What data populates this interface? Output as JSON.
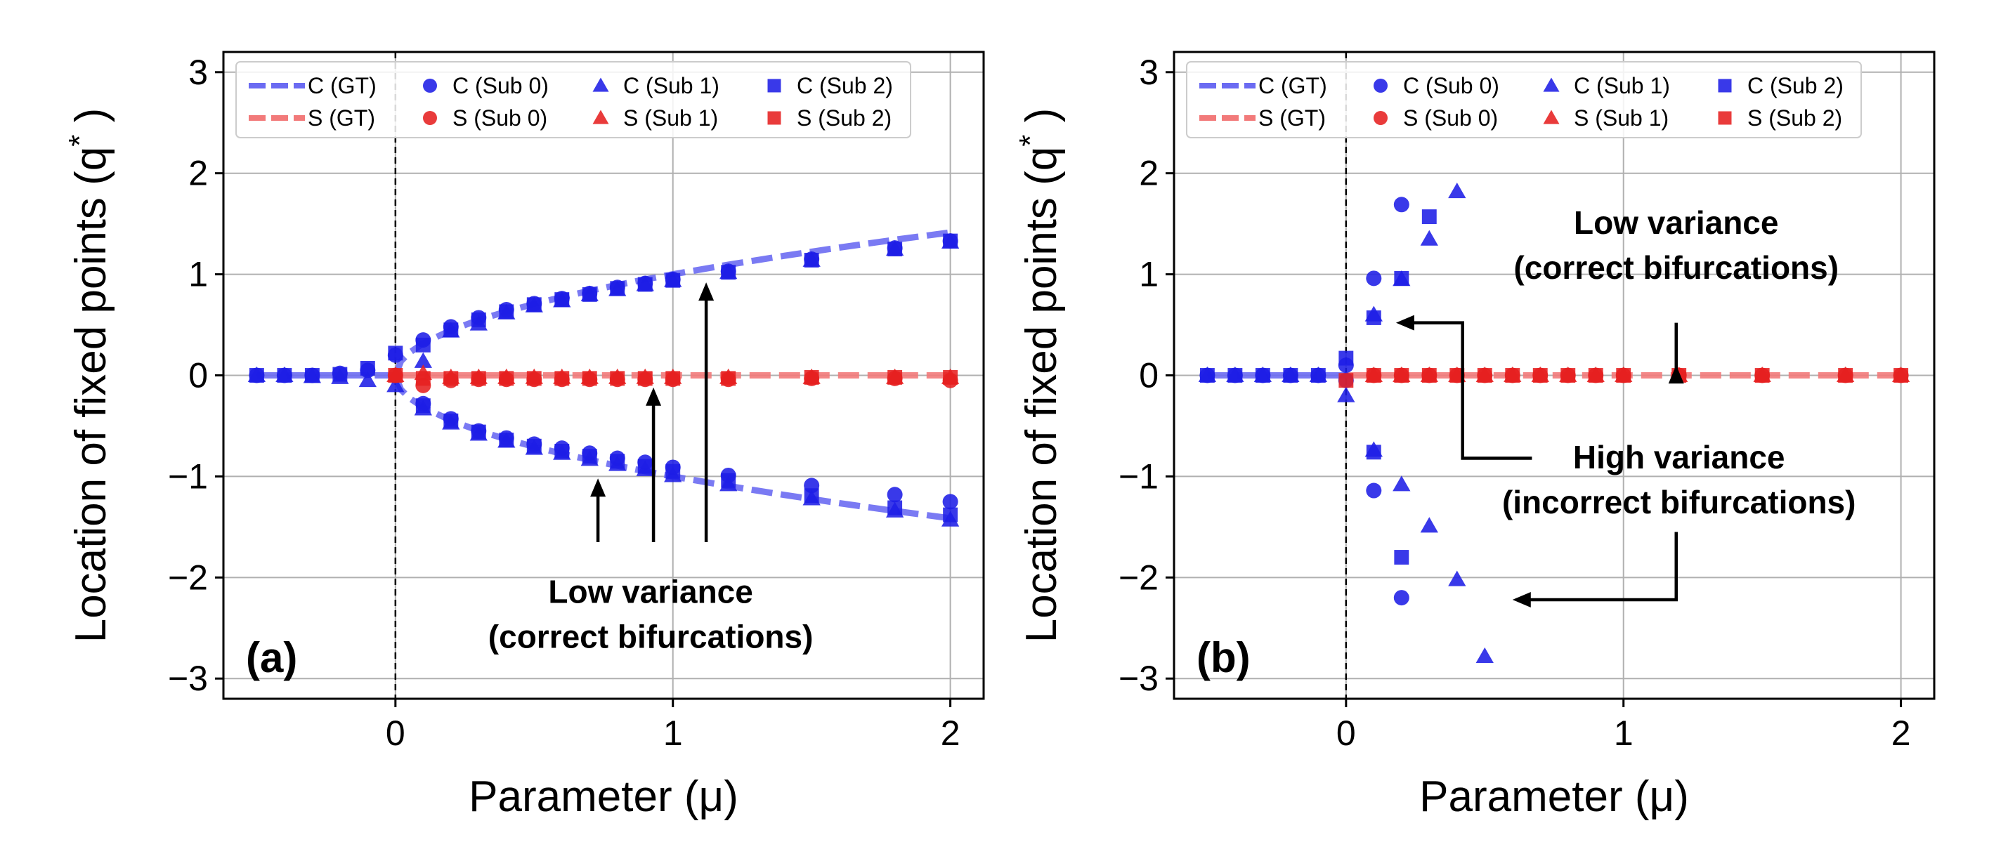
{
  "chart_data": [
    {
      "type": "scatter",
      "panel_label": "(a)",
      "xlabel": "Parameter (μ)",
      "ylabel": "Location of fixed points (q*)",
      "xlim": [
        -0.62,
        2.12
      ],
      "ylim": [
        -3.2,
        3.2
      ],
      "xticks": [
        0,
        1,
        2
      ],
      "yticks": [
        -3,
        -2,
        -1,
        0,
        1,
        2,
        3
      ],
      "xtick_labels": [
        "0",
        "1",
        "2"
      ],
      "ytick_labels": [
        "−3",
        "−2",
        "−1",
        "0",
        "1",
        "2",
        "3"
      ],
      "grid": true,
      "legend_position": "top",
      "vline_x": 0,
      "legend": [
        {
          "label": "C (GT)",
          "kind": "line",
          "color": "#6b6bf2"
        },
        {
          "label": "C (Sub 0)",
          "kind": "circle",
          "color": "#1e1ee6"
        },
        {
          "label": "C (Sub 1)",
          "kind": "triangle",
          "color": "#1e1ee6"
        },
        {
          "label": "C (Sub 2)",
          "kind": "square",
          "color": "#1e1ee6"
        },
        {
          "label": "S (GT)",
          "kind": "line",
          "color": "#f27a7a"
        },
        {
          "label": "S (Sub 0)",
          "kind": "circle",
          "color": "#e62020"
        },
        {
          "label": "S (Sub 1)",
          "kind": "triangle",
          "color": "#e62020"
        },
        {
          "label": "S (Sub 2)",
          "kind": "square",
          "color": "#e62020"
        }
      ],
      "gt_lines": [
        {
          "name": "C (GT)",
          "color": "#6b6bf2",
          "x": [
            -0.5,
            -0.4,
            -0.3,
            -0.2,
            -0.1,
            0.0
          ],
          "y": [
            0,
            0,
            0,
            0,
            0,
            0
          ]
        },
        {
          "name": "C (GT)",
          "color": "#6b6bf2",
          "x": [
            0,
            0.02,
            0.05,
            0.1,
            0.2,
            0.3,
            0.4,
            0.5,
            0.6,
            0.7,
            0.8,
            0.9,
            1.0,
            1.2,
            1.4,
            1.6,
            1.8,
            2.0
          ],
          "y": [
            0,
            0.141,
            0.224,
            0.316,
            0.447,
            0.548,
            0.632,
            0.707,
            0.775,
            0.837,
            0.894,
            0.949,
            1.0,
            1.095,
            1.183,
            1.265,
            1.342,
            1.414
          ]
        },
        {
          "name": "C (GT)",
          "color": "#6b6bf2",
          "x": [
            0,
            0.02,
            0.05,
            0.1,
            0.2,
            0.3,
            0.4,
            0.5,
            0.6,
            0.7,
            0.8,
            0.9,
            1.0,
            1.2,
            1.4,
            1.6,
            1.8,
            2.0
          ],
          "y": [
            0,
            -0.141,
            -0.224,
            -0.316,
            -0.447,
            -0.548,
            -0.632,
            -0.707,
            -0.775,
            -0.837,
            -0.894,
            -0.949,
            -1.0,
            -1.095,
            -1.183,
            -1.265,
            -1.342,
            -1.414
          ]
        },
        {
          "name": "S (GT)",
          "color": "#f27a7a",
          "x": [
            0,
            2.0
          ],
          "y": [
            0,
            0
          ]
        }
      ],
      "points": {
        "C": [
          {
            "marker": "circle",
            "x": [
              -0.5,
              -0.4,
              -0.3,
              -0.2,
              -0.1,
              0.0,
              0.1,
              0.2,
              0.3,
              0.4,
              0.5,
              0.6,
              0.7,
              0.8,
              0.9,
              1.0,
              1.2,
              1.5,
              1.8,
              2.0,
              0.1,
              0.2,
              0.3,
              0.4,
              0.5,
              0.6,
              0.7,
              0.8,
              0.9,
              1.0,
              1.2,
              1.5,
              1.8,
              2.0
            ],
            "y": [
              0,
              0,
              0,
              0.02,
              0.05,
              0.2,
              0.35,
              0.48,
              0.57,
              0.65,
              0.71,
              0.76,
              0.81,
              0.87,
              0.91,
              0.95,
              1.03,
              1.15,
              1.26,
              1.33,
              -0.28,
              -0.43,
              -0.55,
              -0.62,
              -0.68,
              -0.72,
              -0.77,
              -0.82,
              -0.86,
              -0.91,
              -0.99,
              -1.09,
              -1.18,
              -1.25
            ]
          },
          {
            "marker": "triangle",
            "x": [
              -0.5,
              -0.4,
              -0.3,
              -0.2,
              -0.1,
              0.0,
              0.1,
              0.2,
              0.3,
              0.4,
              0.5,
              0.6,
              0.7,
              0.8,
              0.9,
              1.0,
              1.2,
              1.5,
              1.8,
              2.0,
              0.1,
              0.2,
              0.3,
              0.4,
              0.5,
              0.6,
              0.7,
              0.8,
              0.9,
              1.0,
              1.2,
              1.5,
              1.8,
              2.0
            ],
            "y": [
              0,
              0,
              -0.01,
              -0.02,
              -0.05,
              -0.1,
              0.14,
              0.44,
              0.51,
              0.62,
              0.69,
              0.74,
              0.8,
              0.85,
              0.9,
              0.94,
              1.02,
              1.14,
              1.25,
              1.32,
              -0.33,
              -0.47,
              -0.58,
              -0.65,
              -0.72,
              -0.77,
              -0.83,
              -0.88,
              -0.93,
              -0.99,
              -1.08,
              -1.22,
              -1.34,
              -1.43
            ]
          },
          {
            "marker": "square",
            "x": [
              -0.5,
              -0.4,
              -0.3,
              -0.2,
              -0.1,
              0.0,
              0.1,
              0.2,
              0.3,
              0.4,
              0.5,
              0.6,
              0.7,
              0.8,
              0.9,
              1.0,
              1.2,
              1.5,
              1.8,
              2.0,
              0.1,
              0.2,
              0.3,
              0.4,
              0.5,
              0.6,
              0.7,
              0.8,
              0.9,
              1.0,
              1.2,
              1.5,
              1.8,
              2.0
            ],
            "y": [
              0,
              0,
              0,
              0.01,
              0.07,
              0.22,
              0.3,
              0.45,
              0.55,
              0.63,
              0.7,
              0.75,
              0.8,
              0.86,
              0.9,
              0.94,
              1.02,
              1.14,
              1.25,
              1.33,
              -0.3,
              -0.45,
              -0.56,
              -0.64,
              -0.7,
              -0.75,
              -0.8,
              -0.85,
              -0.9,
              -0.95,
              -1.04,
              -1.19,
              -1.31,
              -1.38
            ]
          }
        ],
        "S": [
          {
            "marker": "circle",
            "x": [
              0.0,
              0.1,
              0.2,
              0.3,
              0.4,
              0.5,
              0.6,
              0.7,
              0.8,
              0.9,
              1.0,
              1.2,
              1.5,
              1.8,
              2.0
            ],
            "y": [
              0.0,
              -0.1,
              -0.05,
              -0.04,
              -0.04,
              -0.04,
              -0.04,
              -0.04,
              -0.04,
              -0.04,
              -0.04,
              -0.04,
              -0.03,
              -0.03,
              -0.05
            ]
          },
          {
            "marker": "triangle",
            "x": [
              0.0,
              0.1,
              0.2,
              0.3,
              0.4,
              0.5,
              0.6,
              0.7,
              0.8,
              0.9,
              1.0,
              1.2,
              1.5,
              1.8,
              2.0
            ],
            "y": [
              0.0,
              0.02,
              -0.02,
              -0.02,
              -0.02,
              -0.02,
              -0.02,
              -0.02,
              -0.02,
              -0.02,
              -0.02,
              -0.02,
              -0.02,
              -0.02,
              -0.02
            ]
          },
          {
            "marker": "square",
            "x": [
              0.0,
              0.1,
              0.2,
              0.3,
              0.4,
              0.5,
              0.6,
              0.7,
              0.8,
              0.9,
              1.0,
              1.2,
              1.5,
              1.8,
              2.0
            ],
            "y": [
              0.0,
              -0.03,
              -0.03,
              -0.03,
              -0.03,
              -0.03,
              -0.03,
              -0.03,
              -0.03,
              -0.03,
              -0.03,
              -0.03,
              -0.02,
              -0.02,
              -0.02
            ]
          }
        ]
      },
      "annotations": [
        {
          "lines": [
            "Low variance",
            "(correct bifurcations)"
          ],
          "text_x": 0.92,
          "text_y": -2.25,
          "arrows": [
            {
              "from": [
                0.73,
                -1.65
              ],
              "to": [
                0.73,
                -1.02
              ]
            },
            {
              "from": [
                0.93,
                -1.65
              ],
              "to": [
                0.93,
                -0.12
              ]
            },
            {
              "from": [
                1.12,
                -1.65
              ],
              "to": [
                1.12,
                0.92
              ]
            }
          ]
        }
      ]
    },
    {
      "type": "scatter",
      "panel_label": "(b)",
      "xlabel": "Parameter (μ)",
      "ylabel": "Location of fixed points (q*)",
      "xlim": [
        -0.62,
        2.12
      ],
      "ylim": [
        -3.2,
        3.2
      ],
      "xticks": [
        0,
        1,
        2
      ],
      "yticks": [
        -3,
        -2,
        -1,
        0,
        1,
        2,
        3
      ],
      "xtick_labels": [
        "0",
        "1",
        "2"
      ],
      "ytick_labels": [
        "−3",
        "−2",
        "−1",
        "0",
        "1",
        "2",
        "3"
      ],
      "grid": true,
      "legend_position": "top",
      "vline_x": 0,
      "legend": [
        {
          "label": "C (GT)",
          "kind": "line",
          "color": "#6b6bf2"
        },
        {
          "label": "C (Sub 0)",
          "kind": "circle",
          "color": "#1e1ee6"
        },
        {
          "label": "C (Sub 1)",
          "kind": "triangle",
          "color": "#1e1ee6"
        },
        {
          "label": "C (Sub 2)",
          "kind": "square",
          "color": "#1e1ee6"
        },
        {
          "label": "S (GT)",
          "kind": "line",
          "color": "#f27a7a"
        },
        {
          "label": "S (Sub 0)",
          "kind": "circle",
          "color": "#e62020"
        },
        {
          "label": "S (Sub 1)",
          "kind": "triangle",
          "color": "#e62020"
        },
        {
          "label": "S (Sub 2)",
          "kind": "square",
          "color": "#e62020"
        }
      ],
      "gt_lines": [
        {
          "name": "C (GT)",
          "color": "#6b6bf2",
          "x": [
            -0.5,
            0.0
          ],
          "y": [
            0,
            0
          ]
        },
        {
          "name": "S (GT)",
          "color": "#f27a7a",
          "x": [
            0,
            2.0
          ],
          "y": [
            0,
            0
          ]
        }
      ],
      "points": {
        "C": [
          {
            "marker": "circle",
            "x": [
              -0.5,
              -0.4,
              -0.3,
              -0.2,
              -0.1,
              0.0,
              0.0,
              0.1,
              0.1,
              0.2,
              0.2
            ],
            "y": [
              0,
              0,
              0,
              0,
              0,
              -0.05,
              0.1,
              0.96,
              -1.14,
              1.69,
              -2.2
            ]
          },
          {
            "marker": "triangle",
            "x": [
              -0.5,
              -0.4,
              -0.3,
              -0.2,
              -0.1,
              0.0,
              0.1,
              0.1,
              0.2,
              0.2,
              0.3,
              0.3,
              0.4,
              0.4,
              0.5
            ],
            "y": [
              0,
              0,
              0,
              0,
              0,
              -0.2,
              0.6,
              -0.74,
              0.95,
              -1.08,
              1.35,
              -1.49,
              1.82,
              -2.02,
              -2.78
            ]
          },
          {
            "marker": "square",
            "x": [
              -0.5,
              -0.4,
              -0.3,
              -0.2,
              -0.1,
              0.0,
              0.1,
              0.1,
              0.2,
              0.2,
              0.3
            ],
            "y": [
              0,
              0,
              0,
              0,
              0,
              0.17,
              0.57,
              -0.76,
              0.96,
              -1.8,
              1.57
            ]
          }
        ],
        "S": [
          {
            "marker": "circle",
            "x": [
              0.1,
              0.2,
              0.3,
              0.4,
              0.5,
              0.6,
              0.7,
              0.8,
              0.9,
              1.0,
              1.2,
              1.5,
              1.8,
              2.0
            ],
            "y": [
              0,
              0,
              0,
              0,
              0,
              0,
              0,
              0,
              0,
              0,
              0,
              0,
              0,
              0
            ]
          },
          {
            "marker": "triangle",
            "x": [
              0.1,
              0.2,
              0.3,
              0.4,
              0.5,
              0.6,
              0.7,
              0.8,
              0.9,
              1.0,
              1.2,
              1.5,
              1.8,
              2.0
            ],
            "y": [
              0,
              0,
              0,
              0,
              0,
              0,
              0,
              0,
              0,
              0,
              0,
              0,
              0,
              0
            ]
          },
          {
            "marker": "square",
            "x": [
              0.0,
              0.1,
              0.2,
              0.3,
              0.4,
              0.5,
              0.6,
              0.7,
              0.8,
              0.9,
              1.0,
              1.2,
              1.5,
              1.8,
              2.0
            ],
            "y": [
              -0.05,
              0,
              0,
              0,
              0,
              0,
              0,
              0,
              0,
              0,
              0,
              0,
              0,
              0,
              0
            ]
          }
        ]
      },
      "annotations": [
        {
          "lines": [
            "Low variance",
            "(correct bifurcations)"
          ],
          "text_x": 1.19,
          "text_y": 1.4,
          "arrows": [
            {
              "from": [
                1.19,
                0.52
              ],
              "to": [
                1.19,
                0.1
              ]
            }
          ]
        },
        {
          "lines": [
            "High variance",
            "(incorrect bifurcations)"
          ],
          "text_x": 1.2,
          "text_y": -0.92,
          "arrows": [],
          "elbows": [
            {
              "points": [
                [
                  0.67,
                  -0.82
                ],
                [
                  0.42,
                  -0.82
                ],
                [
                  0.42,
                  0.52
                ],
                [
                  0.18,
                  0.52
                ]
              ]
            },
            {
              "points": [
                [
                  1.19,
                  -1.55
                ],
                [
                  1.19,
                  -2.22
                ],
                [
                  0.6,
                  -2.22
                ]
              ]
            }
          ]
        }
      ]
    }
  ]
}
